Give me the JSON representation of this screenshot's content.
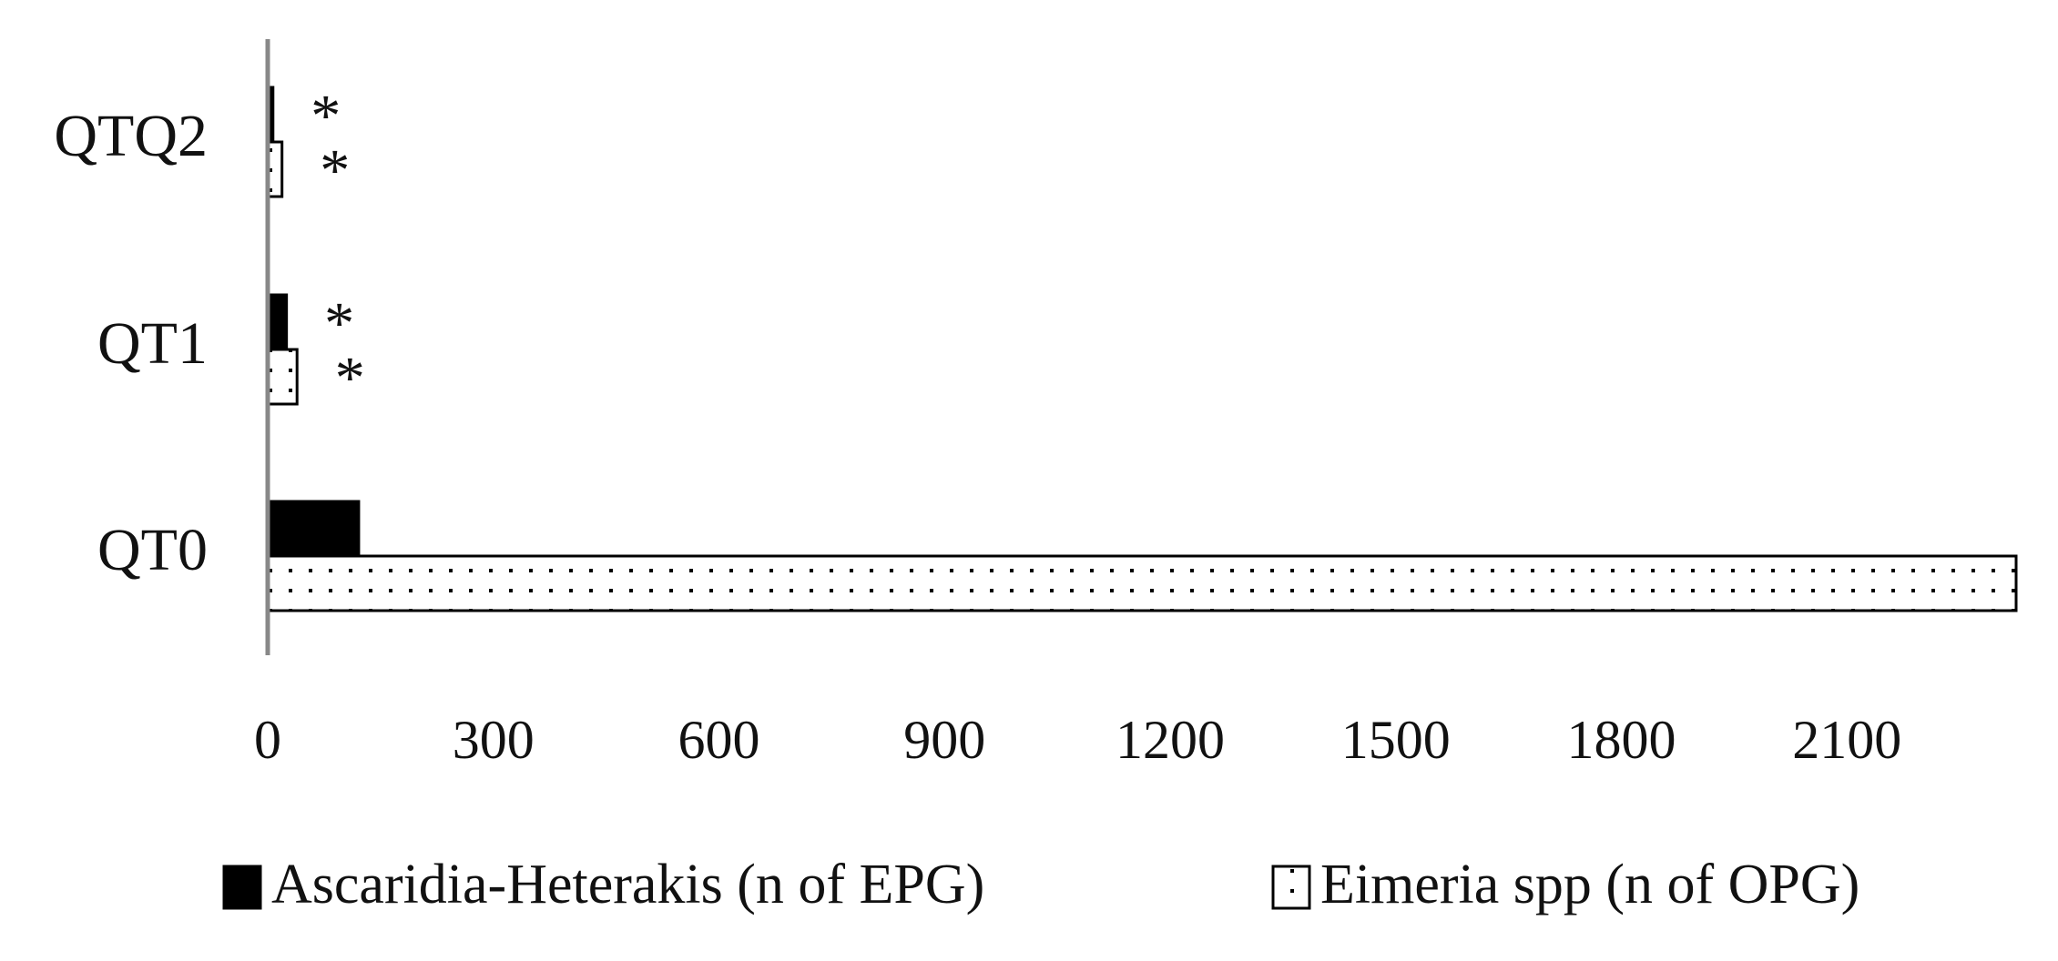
{
  "chart_data": {
    "type": "bar",
    "orientation": "horizontal",
    "categories": [
      "QTQ2",
      "QT1",
      "QT0"
    ],
    "series": [
      {
        "name": "Ascaridia-Heterakis (n of EPG)",
        "color": "#000000",
        "pattern": "solid",
        "values": [
          7,
          25,
          121
        ],
        "significance": [
          "*",
          "*",
          null
        ]
      },
      {
        "name": "Eimeria spp (n of OPG)",
        "color": "#ffffff",
        "pattern": "dots",
        "values": [
          19,
          39,
          2325
        ],
        "significance": [
          "*",
          "*",
          null
        ]
      }
    ],
    "xlim": [
      0,
      2325
    ],
    "xticks": [
      0,
      300,
      600,
      900,
      1200,
      1500,
      1800,
      2100
    ],
    "legend": "bottom"
  }
}
